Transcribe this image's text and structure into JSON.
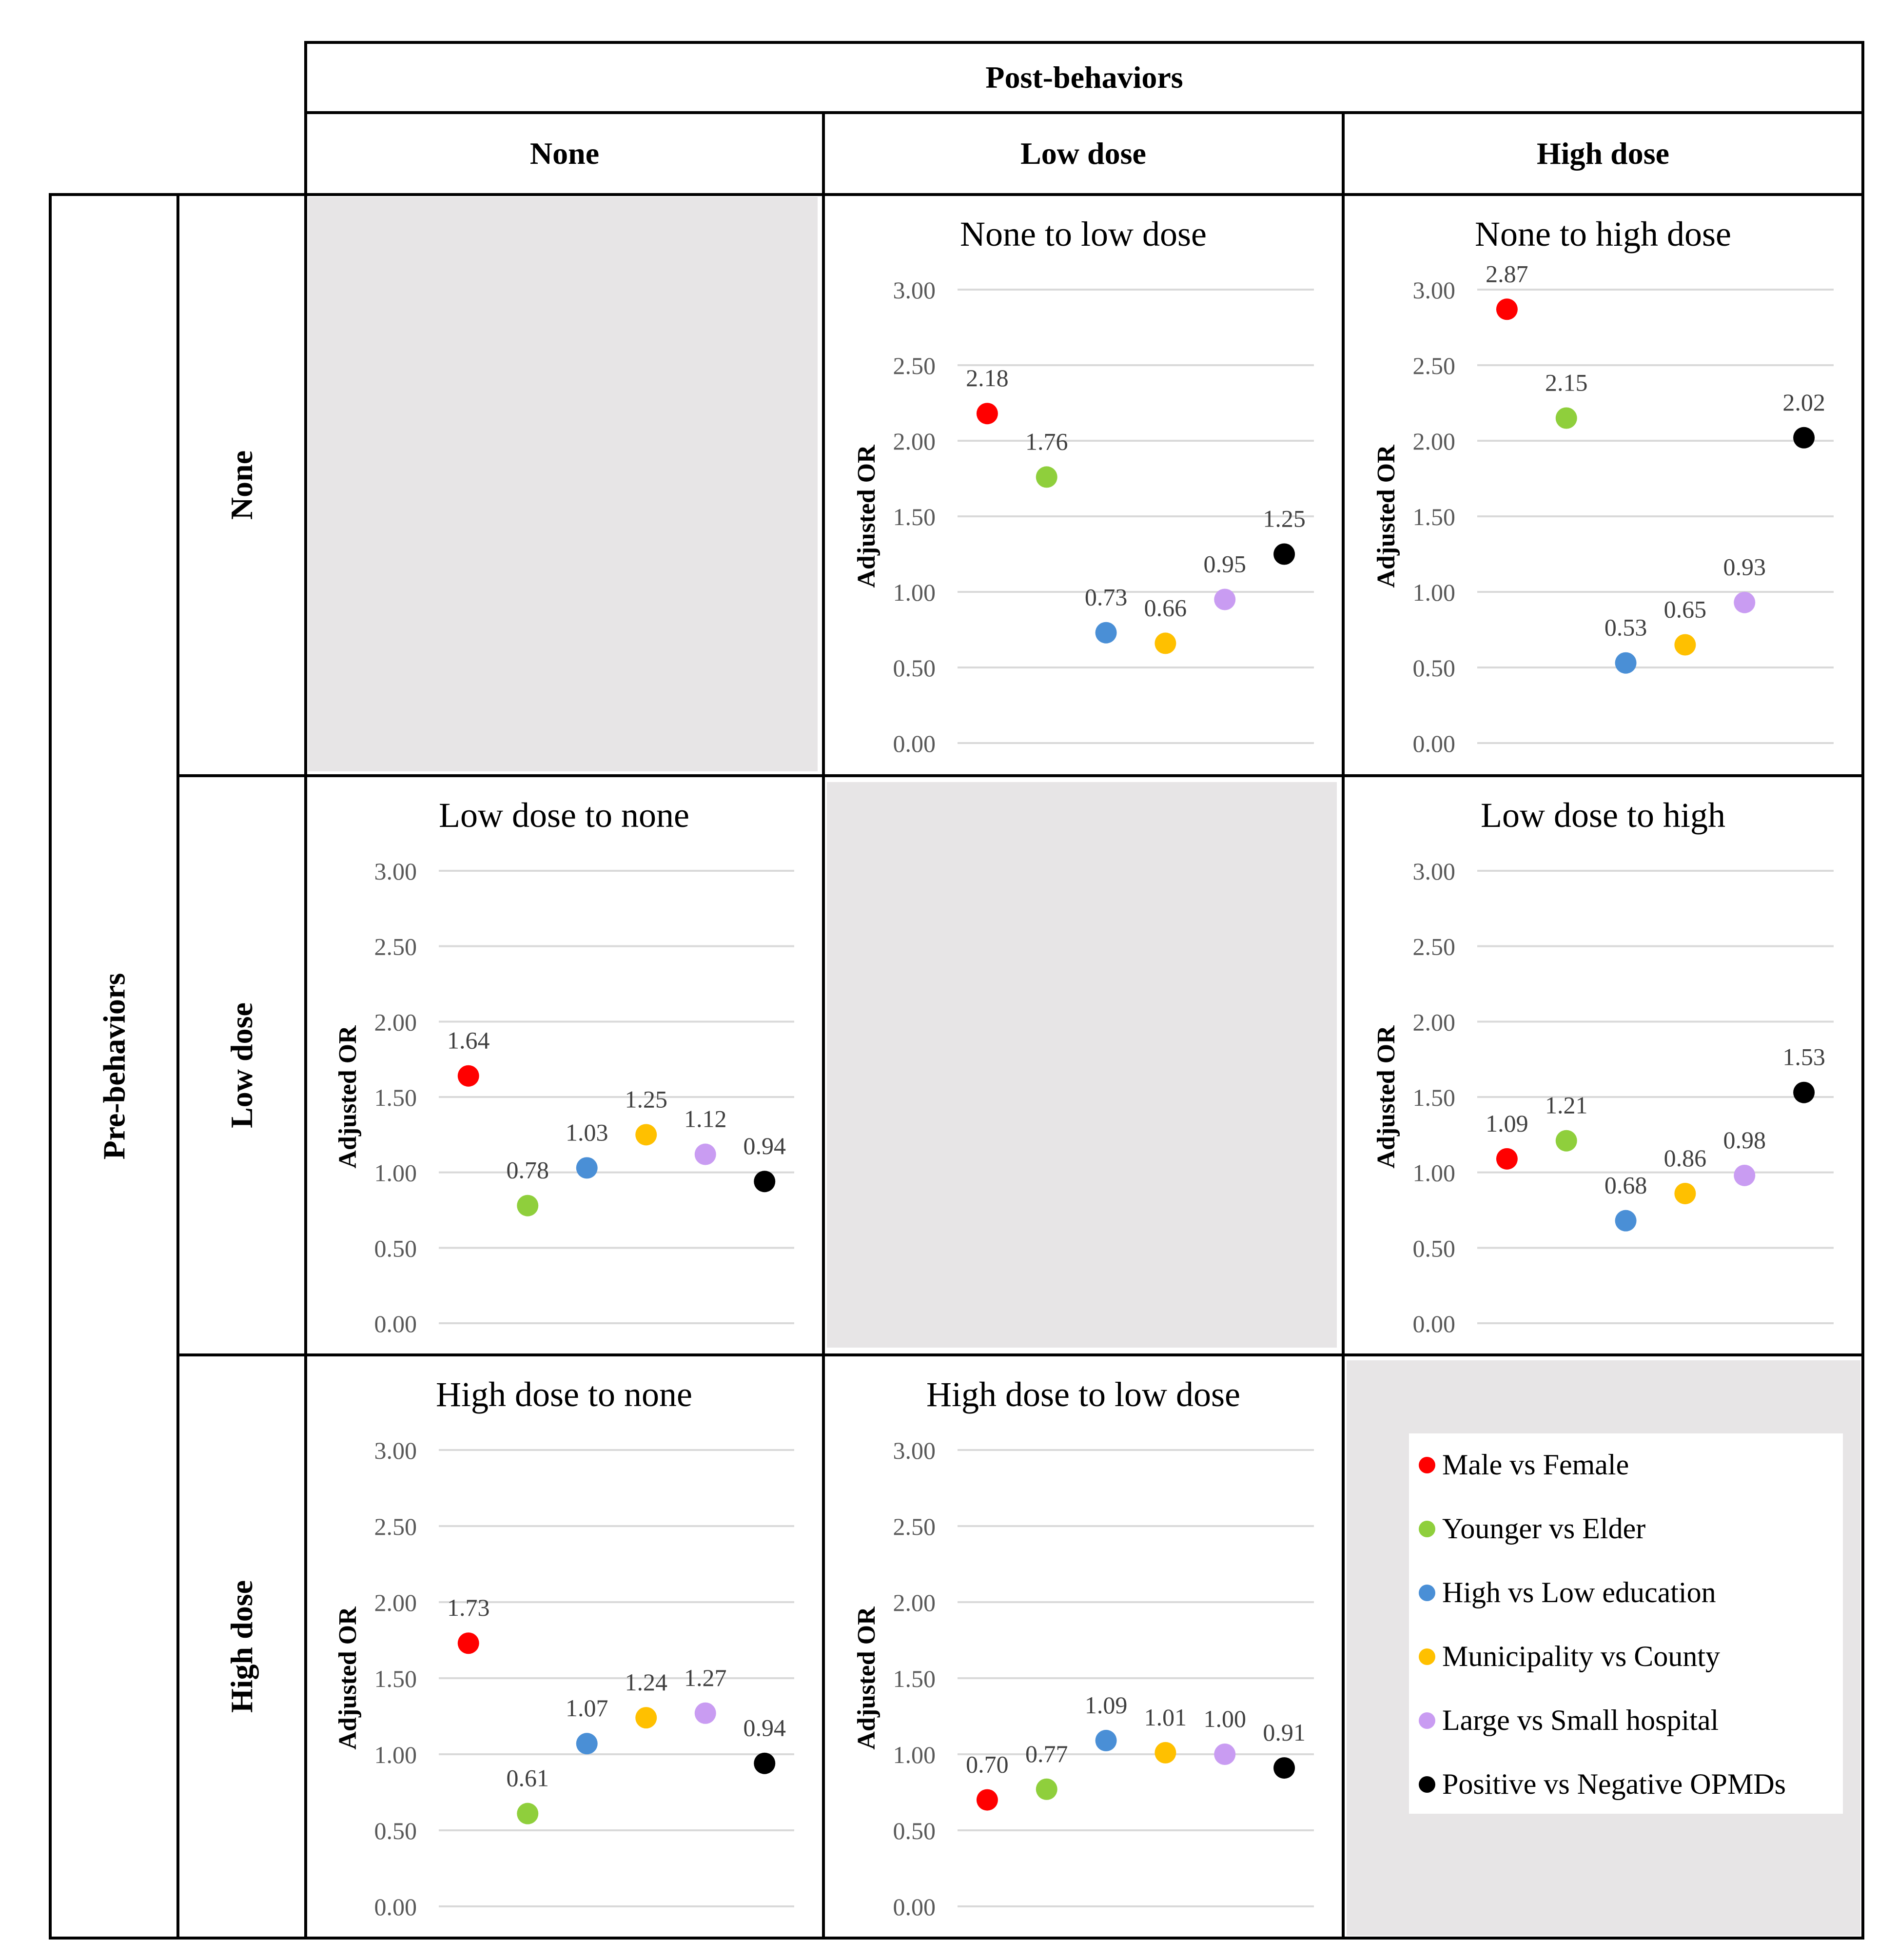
{
  "table": {
    "post_header": "Post-behaviors",
    "pre_header": "Pre-behaviors",
    "col_headers": [
      "None",
      "Low dose",
      "High dose"
    ],
    "row_headers": [
      "None",
      "Low dose",
      "High dose"
    ]
  },
  "axis_label": "Adjusted OR",
  "colors": [
    "#ff0000",
    "#8fcf3c",
    "#4a8fd6",
    "#ffc000",
    "#c99cf2",
    "#000000"
  ],
  "legend": [
    "Male vs Female",
    "Younger vs Elder",
    "High vs Low education",
    "Municipality vs County",
    "Large vs Small hospital",
    "Positive vs Negative OPMDs"
  ],
  "chart_data": [
    {
      "type": "scatter",
      "title": "None to low dose",
      "ylabel": "Adjusted OR",
      "ylim": [
        0,
        3
      ],
      "yticks": [
        "0.00",
        "0.50",
        "1.00",
        "1.50",
        "2.00",
        "2.50",
        "3.00"
      ],
      "values": [
        2.18,
        1.76,
        0.73,
        0.66,
        0.95,
        1.25
      ],
      "labels": [
        "2.18",
        "1.76",
        "0.73",
        "0.66",
        "0.95",
        "1.25"
      ]
    },
    {
      "type": "scatter",
      "title": "None to high dose",
      "ylabel": "Adjusted OR",
      "ylim": [
        0,
        3
      ],
      "yticks": [
        "0.00",
        "0.50",
        "1.00",
        "1.50",
        "2.00",
        "2.50",
        "3.00"
      ],
      "values": [
        2.87,
        2.15,
        0.53,
        0.65,
        0.93,
        2.02
      ],
      "labels": [
        "2.87",
        "2.15",
        "0.53",
        "0.65",
        "0.93",
        "2.02"
      ]
    },
    {
      "type": "scatter",
      "title": "Low dose to none",
      "ylabel": "Adjusted OR",
      "ylim": [
        0,
        3
      ],
      "yticks": [
        "0.00",
        "0.50",
        "1.00",
        "1.50",
        "2.00",
        "2.50",
        "3.00"
      ],
      "values": [
        1.64,
        0.78,
        1.03,
        1.25,
        1.12,
        0.94
      ],
      "labels": [
        "1.64",
        "0.78",
        "1.03",
        "1.25",
        "1.12",
        "0.94"
      ]
    },
    {
      "type": "scatter",
      "title": "Low dose to high",
      "ylabel": "Adjusted OR",
      "ylim": [
        0,
        3
      ],
      "yticks": [
        "0.00",
        "0.50",
        "1.00",
        "1.50",
        "2.00",
        "2.50",
        "3.00"
      ],
      "values": [
        1.09,
        1.21,
        0.68,
        0.86,
        0.98,
        1.53
      ],
      "labels": [
        "1.09",
        "1.21",
        "0.68",
        "0.86",
        "0.98",
        "1.53"
      ]
    },
    {
      "type": "scatter",
      "title": "High dose to none",
      "ylabel": "Adjusted OR",
      "ylim": [
        0,
        3
      ],
      "yticks": [
        "0.00",
        "0.50",
        "1.00",
        "1.50",
        "2.00",
        "2.50",
        "3.00"
      ],
      "values": [
        1.73,
        0.61,
        1.07,
        1.24,
        1.27,
        0.94
      ],
      "labels": [
        "1.73",
        "0.61",
        "1.07",
        "1.24",
        "1.27",
        "0.94"
      ]
    },
    {
      "type": "scatter",
      "title": "High dose to low dose",
      "ylabel": "Adjusted OR",
      "ylim": [
        0,
        3
      ],
      "yticks": [
        "0.00",
        "0.50",
        "1.00",
        "1.50",
        "2.00",
        "2.50",
        "3.00"
      ],
      "values": [
        0.7,
        0.77,
        1.09,
        1.01,
        1.0,
        0.91
      ],
      "labels": [
        "0.70",
        "0.77",
        "1.09",
        "1.01",
        "1.00",
        "0.91"
      ]
    }
  ]
}
